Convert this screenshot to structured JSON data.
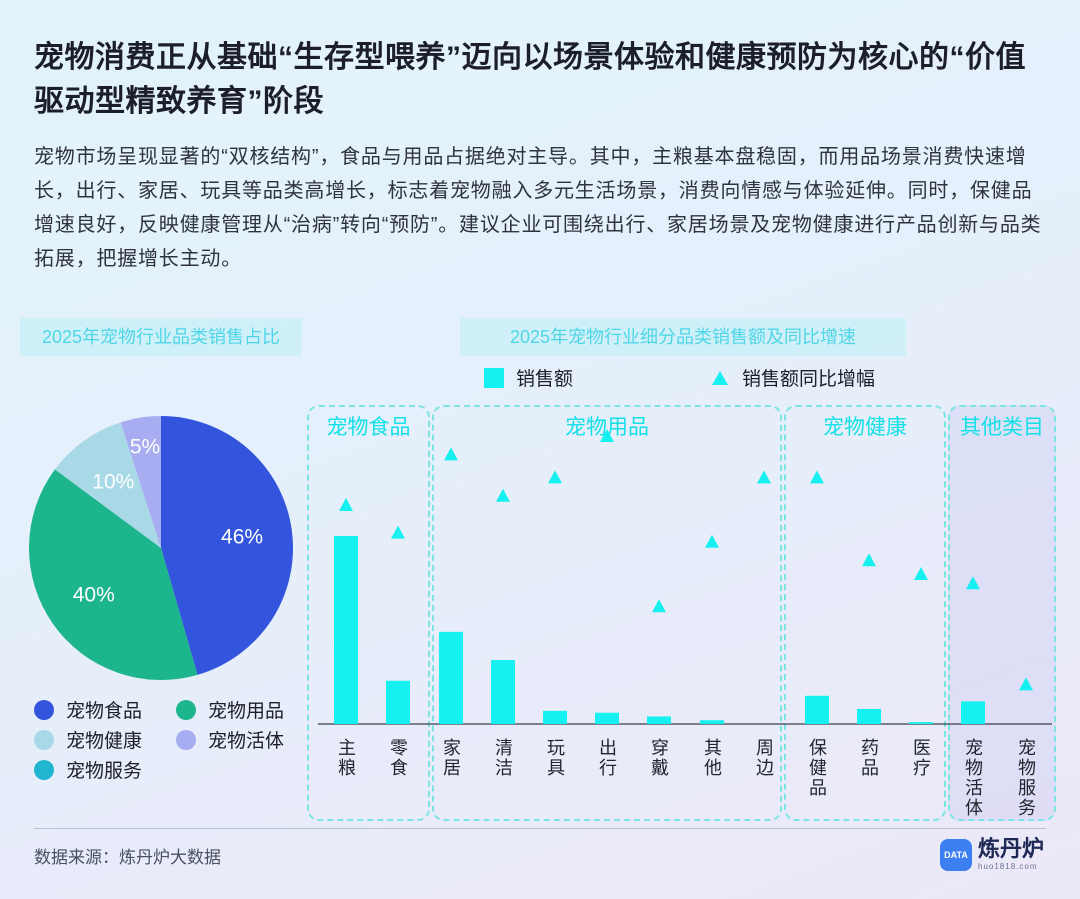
{
  "header": {
    "title": "宠物消费正从基础“生存型喂养”迈向以场景体验和健康预防为核心的“价值驱动型精致养育”阶段",
    "description": "宠物市场呈现显著的“双核结构”，食品与用品占据绝对主导。其中，主粮基本盘稳固，而用品场景消费快速增长，出行、家居、玩具等品类高增长，标志着宠物融入多元生活场景，消费向情感与体验延伸。同时，保健品增速良好，反映健康管理从“治病”转向“预防”。建议企业可围绕出行、家居场景及宠物健康进行产品创新与品类拓展，把握增长主动。"
  },
  "colors": {
    "pie_food": "#3355dd",
    "pie_supplies": "#1db58c",
    "pie_health": "#a9d8e6",
    "pie_live": "#a7adf0",
    "pie_service": "#22b5cf",
    "bar": "#16f0f0"
  },
  "chart_data": [
    {
      "type": "pie",
      "title": "2025年宠物行业品类销售占比",
      "slices": [
        {
          "name": "宠物食品",
          "value": 46,
          "label": "46%",
          "color_key": "pie_food"
        },
        {
          "name": "宠物用品",
          "value": 40,
          "label": "40%",
          "color_key": "pie_supplies"
        },
        {
          "name": "宠物健康",
          "value": 10,
          "label": "10%",
          "color_key": "pie_health"
        },
        {
          "name": "宠物活体",
          "value": 5,
          "label": "5%",
          "color_key": "pie_live"
        },
        {
          "name": "宠物服务",
          "value": 0,
          "label": "",
          "color_key": "pie_service"
        }
      ]
    },
    {
      "type": "bar",
      "title": "2025年宠物行业细分品类销售额及同比增速",
      "legend": [
        "销售额",
        "销售额同比增幅"
      ],
      "groups": [
        {
          "name": "宠物食品",
          "categories": [
            "主粮",
            "零食"
          ]
        },
        {
          "name": "宠物用品",
          "categories": [
            "家居",
            "清洁",
            "玩具",
            "出行",
            "穿戴",
            "其他",
            "周边"
          ]
        },
        {
          "name": "宠物健康",
          "categories": [
            "保健品",
            "药品",
            "医疗"
          ]
        },
        {
          "name": "其他类目",
          "categories": [
            "宠物活体",
            "宠物服务"
          ]
        }
      ],
      "categories": [
        "主粮",
        "零食",
        "家居",
        "清洁",
        "玩具",
        "出行",
        "穿戴",
        "其他",
        "周边",
        "保健品",
        "药品",
        "医疗",
        "宠物活体",
        "宠物服务"
      ],
      "series": [
        {
          "name": "销售额",
          "values": [
            100,
            23,
            49,
            34,
            7,
            6,
            4,
            2,
            0,
            15,
            8,
            1,
            12,
            0
          ]
        },
        {
          "name": "销售额同比增幅",
          "values": [
            50,
            44,
            61,
            52,
            56,
            65,
            28,
            42,
            56,
            56,
            38,
            35,
            33,
            11
          ]
        }
      ]
    }
  ],
  "footer": {
    "source": "数据来源：炼丹炉大数据",
    "logo_name": "炼丹炉",
    "logo_badge": "DATA",
    "logo_url": "huo1818.com"
  }
}
